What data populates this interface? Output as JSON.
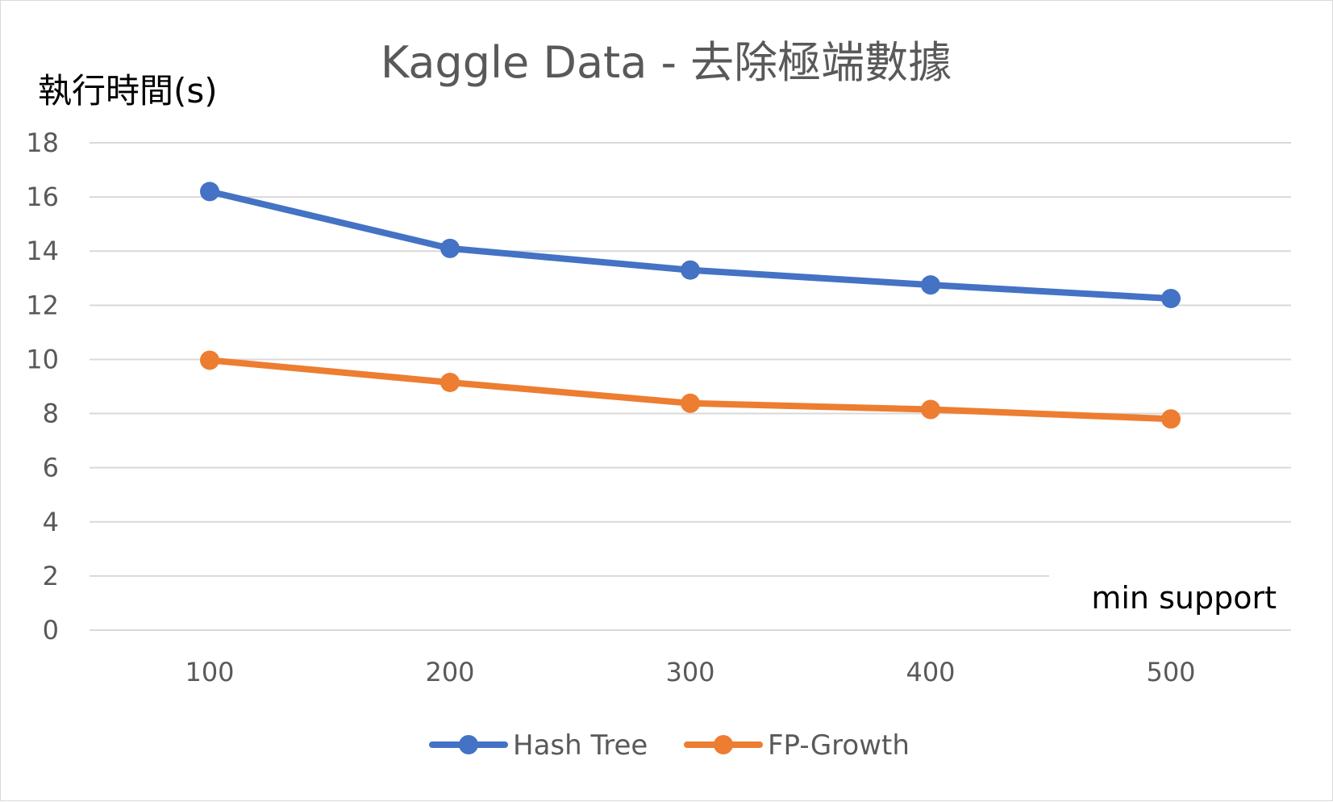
{
  "chart_data": {
    "type": "line",
    "title": "Kaggle Data - 去除極端數據",
    "ylabel": "執行時間(s)",
    "xlabel": "min support",
    "categories": [
      "100",
      "200",
      "300",
      "400",
      "500"
    ],
    "ylim": [
      0,
      18
    ],
    "yticks": [
      "0",
      "2",
      "4",
      "6",
      "8",
      "10",
      "12",
      "14",
      "16",
      "18"
    ],
    "grid": true,
    "legend_position": "bottom",
    "series": [
      {
        "name": "Hash Tree",
        "color": "#4472C4",
        "values": [
          16.2,
          14.1,
          13.3,
          12.75,
          12.25
        ]
      },
      {
        "name": "FP-Growth",
        "color": "#ED7D31",
        "values": [
          9.97,
          9.15,
          8.38,
          8.15,
          7.8
        ]
      }
    ]
  }
}
